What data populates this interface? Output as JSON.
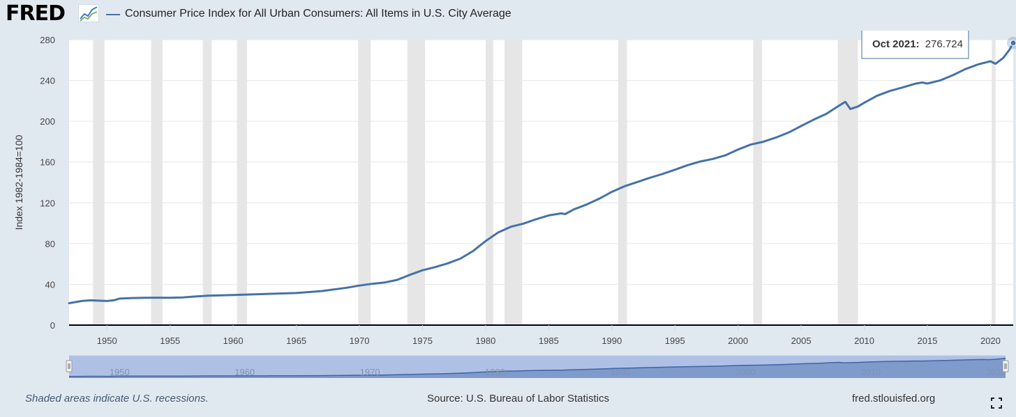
{
  "header": {
    "logo_text": "FRED",
    "logo_icon": "mini-line-chart-icon",
    "series_title": "Consumer Price Index for All Urban Consumers: All Items in U.S. City Average"
  },
  "footer": {
    "note": "Shaded areas indicate U.S. recessions.",
    "source": "Source: U.S. Bureau of Labor Statistics",
    "url": "fred.stlouisfed.org",
    "fullscreen_icon": "fullscreen-icon"
  },
  "tooltip": {
    "date": "Oct 2021:",
    "value": "276.724"
  },
  "colors": {
    "line": "#4572a7",
    "recession": "#e6e6e6",
    "page_bg": "#e1e9f0",
    "navigator_fill": "#7f9bcb"
  },
  "chart_data": {
    "type": "line",
    "ylabel": "Index 1982-1984=100",
    "xlim": [
      1947,
      2021.8
    ],
    "ylim": [
      0,
      280
    ],
    "y_ticks": [
      "0",
      "40",
      "80",
      "120",
      "160",
      "200",
      "240",
      "280"
    ],
    "x_ticks": [
      "1950",
      "1955",
      "1960",
      "1965",
      "1970",
      "1975",
      "1980",
      "1985",
      "1990",
      "1995",
      "2000",
      "2005",
      "2010",
      "2015",
      "2020"
    ],
    "navigator_ticks": [
      "1950",
      "1960",
      "1970",
      "1980",
      "1990",
      "2000",
      "2010",
      "2020"
    ],
    "recessions": [
      [
        1948.9,
        1949.8
      ],
      [
        1953.5,
        1954.4
      ],
      [
        1957.6,
        1958.3
      ],
      [
        1960.3,
        1961.1
      ],
      [
        1969.9,
        1970.9
      ],
      [
        1973.8,
        1975.2
      ],
      [
        1980.0,
        1980.6
      ],
      [
        1981.5,
        1982.9
      ],
      [
        1990.5,
        1991.2
      ],
      [
        2001.2,
        2001.9
      ],
      [
        2007.9,
        2009.5
      ],
      [
        2020.1,
        2020.4
      ]
    ],
    "series": [
      {
        "x": [
          1947.0,
          1948.0,
          1948.7,
          1949.5,
          1950.0,
          1950.6,
          1951.0,
          1952.0,
          1953.0,
          1954.0,
          1955.0,
          1956.0,
          1957.0,
          1958.0,
          1960.0,
          1963.0,
          1965.0,
          1967.0,
          1969.0,
          1970.0,
          1971.0,
          1972.0,
          1973.0,
          1974.0,
          1975.0,
          1976.0,
          1977.0,
          1978.0,
          1979.0,
          1980.0,
          1981.0,
          1982.0,
          1983.0,
          1984.0,
          1985.0,
          1986.0,
          1986.3,
          1987.0,
          1988.0,
          1989.0,
          1990.0,
          1991.0,
          1992.0,
          1993.0,
          1994.0,
          1995.0,
          1996.0,
          1997.0,
          1998.0,
          1999.0,
          2000.0,
          2001.0,
          2002.0,
          2003.0,
          2004.0,
          2005.0,
          2006.0,
          2007.0,
          2008.0,
          2008.5,
          2008.9,
          2009.5,
          2010.0,
          2011.0,
          2012.0,
          2013.0,
          2014.0,
          2014.6,
          2015.0,
          2016.0,
          2017.0,
          2018.0,
          2019.0,
          2020.0,
          2020.4,
          2021.0,
          2021.5,
          2021.8
        ],
        "values": [
          21.5,
          23.6,
          24.3,
          23.9,
          23.6,
          24.5,
          26.0,
          26.6,
          26.8,
          26.9,
          26.8,
          27.2,
          28.1,
          28.9,
          29.6,
          30.7,
          31.5,
          33.4,
          36.7,
          38.8,
          40.5,
          41.8,
          44.4,
          49.3,
          53.8,
          56.9,
          60.6,
          65.2,
          72.6,
          82.4,
          90.9,
          96.5,
          99.6,
          103.9,
          107.6,
          109.6,
          108.9,
          113.6,
          118.3,
          124.0,
          130.7,
          136.2,
          140.3,
          144.5,
          148.2,
          152.4,
          156.9,
          160.5,
          163.0,
          166.6,
          172.2,
          177.1,
          179.9,
          184.0,
          188.9,
          195.3,
          201.6,
          207.3,
          215.3,
          219.0,
          212.0,
          214.5,
          218.1,
          224.9,
          229.6,
          233.0,
          236.7,
          238.0,
          237.0,
          240.0,
          245.1,
          251.1,
          255.7,
          258.8,
          256.4,
          262.0,
          270.0,
          276.724
        ]
      }
    ]
  }
}
